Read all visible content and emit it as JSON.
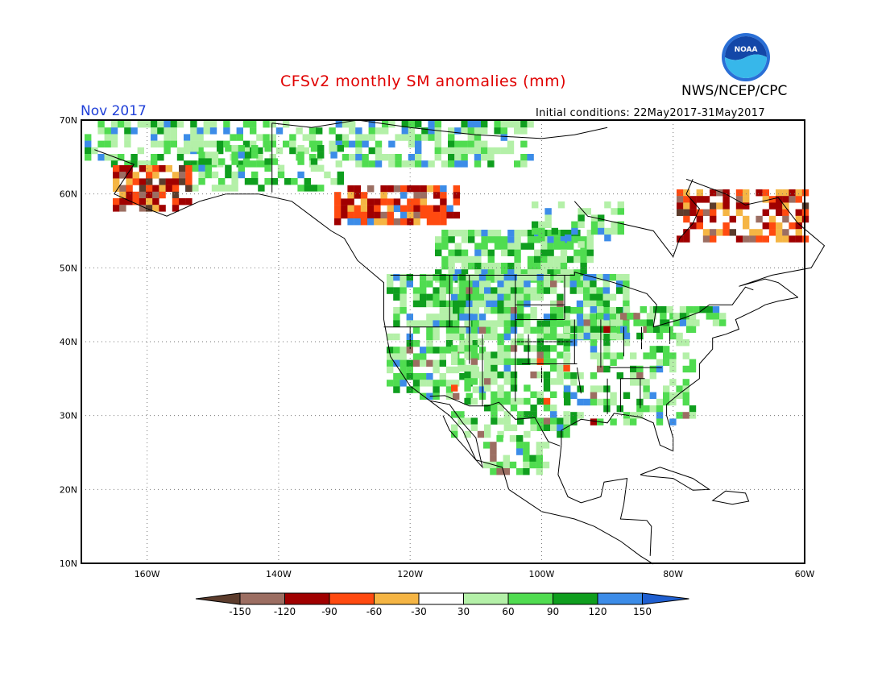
{
  "header": {
    "title": "CFSv2 monthly SM anomalies (mm)",
    "agency": "NWS/NCEP/CPC",
    "period": "Nov 2017",
    "initial_conditions": "Initial conditions: 22May2017-31May2017",
    "logo_text": "NOAA"
  },
  "axes": {
    "lat_labels": [
      "70N",
      "60N",
      "50N",
      "40N",
      "30N",
      "20N",
      "10N"
    ],
    "lon_labels": [
      "160W",
      "140W",
      "120W",
      "100W",
      "80W",
      "60W"
    ]
  },
  "colorbar": {
    "labels": [
      "-150",
      "-120",
      "-90",
      "-60",
      "-30",
      "30",
      "60",
      "90",
      "120",
      "150"
    ],
    "colors": [
      "#5c3c2c",
      "#9c6e62",
      "#a00000",
      "#ff4a10",
      "#f5b544",
      "#ffffff",
      "#b4f0a8",
      "#50dc50",
      "#0f9e1e",
      "#3c8ce8",
      "#1f5fd0"
    ]
  },
  "chart_data": {
    "type": "heatmap",
    "title": "CFSv2 monthly SM anomalies (mm)",
    "subtitle": "Nov 2017",
    "units": "mm",
    "bins": [
      -150,
      -120,
      -90,
      -60,
      -30,
      30,
      60,
      90,
      120,
      150
    ],
    "lon_range": [
      "170W",
      "60W"
    ],
    "lat_range": [
      "10N",
      "70N"
    ],
    "regions": [
      {
        "area": "Alaska south coast",
        "anomaly_range": [
          -120,
          -60
        ]
      },
      {
        "area": "Northern Canada / Arctic coast",
        "anomaly_range": [
          30,
          150
        ]
      },
      {
        "area": "Central Canada (Saskatchewan/Manitoba)",
        "anomaly_range": [
          30,
          120
        ]
      },
      {
        "area": "British Columbia interior",
        "anomaly_range": [
          -120,
          -60
        ]
      },
      {
        "area": "Western and Central US",
        "anomaly_range": [
          30,
          120
        ]
      },
      {
        "area": "Quebec / Labrador",
        "anomaly_range": [
          -120,
          -30
        ]
      },
      {
        "area": "Southeast US coast",
        "anomaly_range": [
          -90,
          150
        ]
      },
      {
        "area": "Mexico",
        "anomaly_range": [
          -150,
          120
        ]
      }
    ]
  }
}
